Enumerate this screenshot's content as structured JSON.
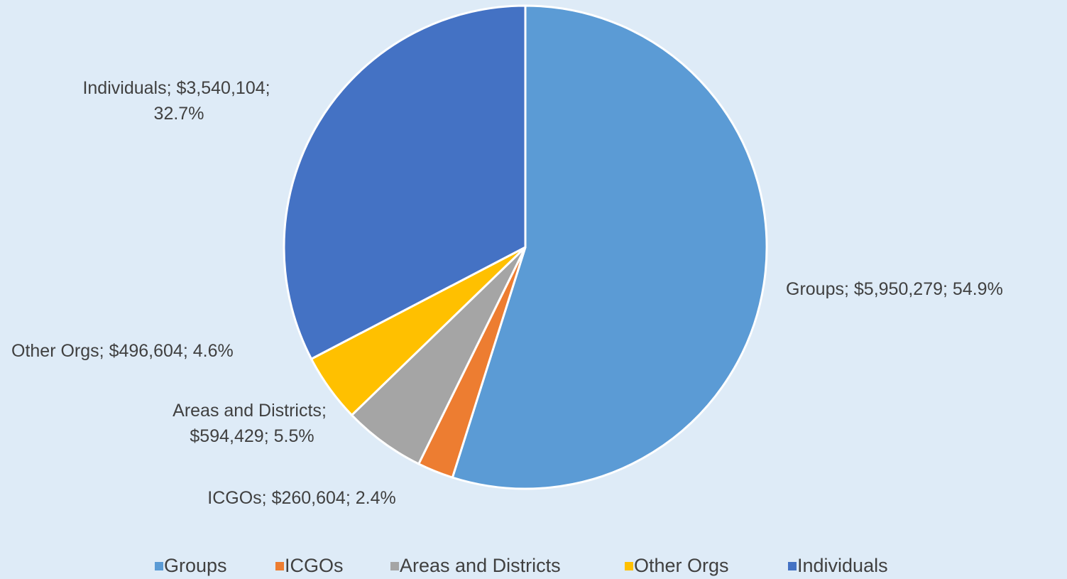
{
  "chart_data": {
    "type": "pie",
    "categories": [
      "Groups",
      "ICGOs",
      "Areas and Districts",
      "Other Orgs",
      "Individuals"
    ],
    "values": [
      5950279,
      260604,
      594429,
      496604,
      3540104
    ],
    "value_labels": [
      "$5,950,279",
      "$260,604",
      "$594,429",
      "$496,604",
      "$3,540,104"
    ],
    "percent_labels": [
      "54.9%",
      "2.4%",
      "5.5%",
      "4.6%",
      "32.7%"
    ],
    "label_separator": "; ",
    "colors": [
      "#5b9bd5",
      "#ed7d31",
      "#a5a5a5",
      "#ffc000",
      "#4472c4"
    ],
    "legend": "bottom"
  }
}
